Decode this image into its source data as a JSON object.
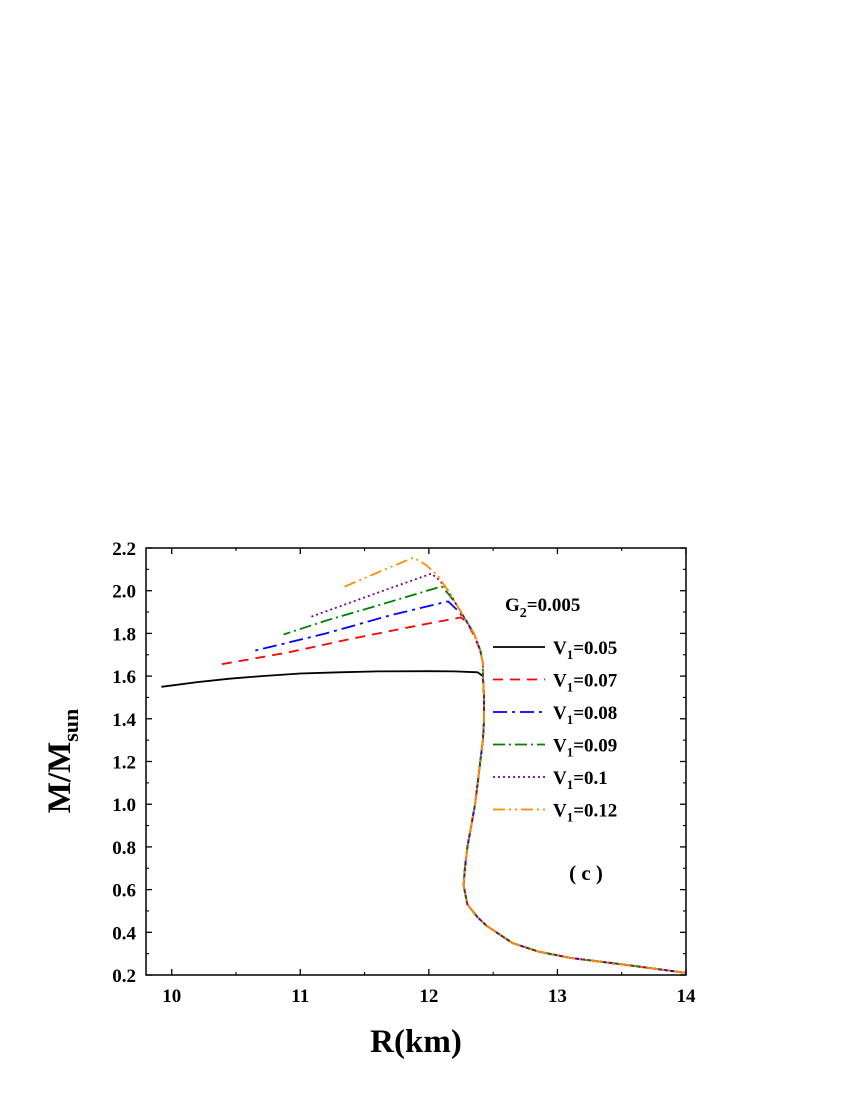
{
  "chart_data": {
    "type": "line",
    "title": "",
    "xlabel": "R(km)",
    "ylabel": "M/M",
    "ylabel_sub": "sun",
    "xlim": [
      9.8,
      14.0
    ],
    "ylim": [
      0.2,
      2.2
    ],
    "xticks": [
      10,
      11,
      12,
      13,
      14
    ],
    "yticks": [
      0.2,
      0.4,
      0.6,
      0.8,
      1.0,
      1.2,
      1.4,
      1.6,
      1.8,
      2.0,
      2.2
    ],
    "xtick_labels": [
      "10",
      "11",
      "12",
      "13",
      "14"
    ],
    "ytick_labels": [
      "0.2",
      "0.4",
      "0.6",
      "0.8",
      "1.0",
      "1.2",
      "1.4",
      "1.6",
      "1.8",
      "2.0",
      "2.2"
    ],
    "grid": false,
    "legend_position": "right",
    "annotations": {
      "parameter": {
        "main": "G",
        "sub": "2",
        "rest": "=0.005"
      },
      "panel": "( c )"
    },
    "common_branch": [
      [
        14.0,
        0.21
      ],
      [
        13.5,
        0.25
      ],
      [
        13.1,
        0.28
      ],
      [
        12.85,
        0.31
      ],
      [
        12.65,
        0.35
      ],
      [
        12.45,
        0.43
      ],
      [
        12.38,
        0.47
      ],
      [
        12.3,
        0.53
      ],
      [
        12.27,
        0.62
      ],
      [
        12.28,
        0.7
      ],
      [
        12.3,
        0.8
      ],
      [
        12.33,
        0.9
      ],
      [
        12.36,
        1.0
      ],
      [
        12.38,
        1.1
      ],
      [
        12.4,
        1.2
      ],
      [
        12.42,
        1.3
      ],
      [
        12.43,
        1.4
      ],
      [
        12.43,
        1.5
      ],
      [
        12.42,
        1.6
      ]
    ],
    "series": [
      {
        "name": "V",
        "name_sub": "1",
        "name_rest": "=0.05",
        "color": "#000000",
        "dash": "",
        "points": [
          [
            12.42,
            1.6
          ],
          [
            12.38,
            1.618
          ],
          [
            12.2,
            1.622
          ],
          [
            12.0,
            1.623
          ],
          [
            11.6,
            1.622
          ],
          [
            11.3,
            1.618
          ],
          [
            11.0,
            1.612
          ],
          [
            10.7,
            1.6
          ],
          [
            10.45,
            1.588
          ],
          [
            10.2,
            1.572
          ],
          [
            9.92,
            1.55
          ]
        ]
      },
      {
        "name": "V",
        "name_sub": "1",
        "name_rest": "=0.07",
        "color": "#ff0000",
        "dash": "10,7",
        "points": [
          [
            12.42,
            1.6
          ],
          [
            12.42,
            1.66
          ],
          [
            12.4,
            1.72
          ],
          [
            12.35,
            1.79
          ],
          [
            12.3,
            1.85
          ],
          [
            12.25,
            1.875
          ],
          [
            11.9,
            1.835
          ],
          [
            11.4,
            1.775
          ],
          [
            10.9,
            1.71
          ],
          [
            10.38,
            1.655
          ]
        ]
      },
      {
        "name": "V",
        "name_sub": "1",
        "name_rest": "=0.08",
        "color": "#0000ff",
        "dash": "14,5,3,5",
        "points": [
          [
            12.42,
            1.6
          ],
          [
            12.42,
            1.66
          ],
          [
            12.4,
            1.72
          ],
          [
            12.35,
            1.8
          ],
          [
            12.29,
            1.86
          ],
          [
            12.22,
            1.91
          ],
          [
            12.15,
            1.95
          ],
          [
            11.7,
            1.885
          ],
          [
            11.2,
            1.8
          ],
          [
            10.62,
            1.715
          ]
        ]
      },
      {
        "name": "V",
        "name_sub": "1",
        "name_rest": "=0.09",
        "color": "#008000",
        "dash": "12,4,2,4",
        "points": [
          [
            12.42,
            1.6
          ],
          [
            12.42,
            1.66
          ],
          [
            12.4,
            1.72
          ],
          [
            12.35,
            1.8
          ],
          [
            12.29,
            1.86
          ],
          [
            12.22,
            1.93
          ],
          [
            12.16,
            1.98
          ],
          [
            12.1,
            2.02
          ],
          [
            11.6,
            1.93
          ],
          [
            11.2,
            1.86
          ],
          [
            10.87,
            1.795
          ]
        ]
      },
      {
        "name": "V",
        "name_sub": "1",
        "name_rest": "=0.1",
        "color": "#800080",
        "dash": "2,3",
        "points": [
          [
            12.42,
            1.6
          ],
          [
            12.42,
            1.66
          ],
          [
            12.4,
            1.72
          ],
          [
            12.35,
            1.8
          ],
          [
            12.29,
            1.86
          ],
          [
            12.22,
            1.93
          ],
          [
            12.15,
            2.0
          ],
          [
            12.08,
            2.05
          ],
          [
            12.02,
            2.08
          ],
          [
            11.6,
            1.99
          ],
          [
            11.3,
            1.925
          ],
          [
            11.07,
            1.875
          ]
        ]
      },
      {
        "name": "V",
        "name_sub": "1",
        "name_rest": "=0.12",
        "color": "#ff8c00",
        "dash": "12,4,2,4,2,4",
        "points": [
          [
            12.42,
            1.6
          ],
          [
            12.42,
            1.66
          ],
          [
            12.4,
            1.72
          ],
          [
            12.35,
            1.8
          ],
          [
            12.29,
            1.86
          ],
          [
            12.22,
            1.93
          ],
          [
            12.15,
            2.0
          ],
          [
            12.07,
            2.07
          ],
          [
            11.98,
            2.12
          ],
          [
            11.88,
            2.155
          ],
          [
            11.6,
            2.085
          ],
          [
            11.33,
            2.015
          ]
        ]
      }
    ]
  }
}
